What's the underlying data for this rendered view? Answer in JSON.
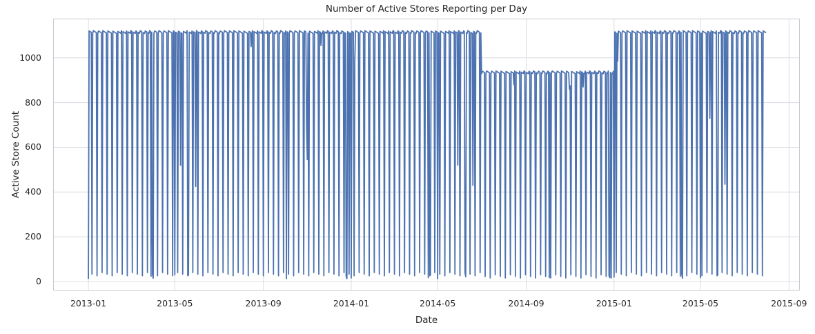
{
  "chart_data": {
    "type": "line",
    "title": "Number of Active Stores Reporting per Day",
    "xlabel": "Date",
    "ylabel": "Active Store Count",
    "line_color": "#4C72B0",
    "grid": "on",
    "grid_color": "#dcdce4",
    "spine_color": "#c9c9d3",
    "text_color": "#262626",
    "plot_bg": "#ffffff",
    "figure_bg": "#ffffff",
    "x_axis": {
      "min": "2012-11-14",
      "max": "2015-09-15",
      "ticks": [
        {
          "label": "2013-01",
          "date": "2013-01-01"
        },
        {
          "label": "2013-05",
          "date": "2013-05-01"
        },
        {
          "label": "2013-09",
          "date": "2013-09-01"
        },
        {
          "label": "2014-01",
          "date": "2014-01-01"
        },
        {
          "label": "2014-05",
          "date": "2014-05-01"
        },
        {
          "label": "2014-09",
          "date": "2014-09-01"
        },
        {
          "label": "2015-01",
          "date": "2015-01-01"
        },
        {
          "label": "2015-05",
          "date": "2015-05-01"
        },
        {
          "label": "2015-09",
          "date": "2015-09-01"
        }
      ]
    },
    "y_axis": {
      "min": -37,
      "max": 1172,
      "ticks": [
        0,
        200,
        400,
        600,
        800,
        1000
      ]
    },
    "series": {
      "name": "active-store-count",
      "frequency": "daily",
      "start": "2013-01-01",
      "end": "2015-07-31",
      "open_day_value": 1115,
      "sunday_value": 30,
      "closed_day_value": 22,
      "top_jitter": 6,
      "low_jitter": 10,
      "refurbishment_period": {
        "start": "2014-07-01",
        "end": "2014-12-31",
        "open_day_value": 935,
        "sunday_value": 20
      },
      "closed_holidays": [
        "2013-01-01",
        "2013-03-29",
        "2013-04-01",
        "2013-05-01",
        "2013-05-20",
        "2013-10-03",
        "2013-12-25",
        "2013-12-26",
        "2014-01-01",
        "2014-04-18",
        "2014-04-21",
        "2014-05-01",
        "2014-06-09",
        "2014-10-03",
        "2014-12-25",
        "2014-12-26",
        "2015-01-01",
        "2015-04-03",
        "2015-04-06",
        "2015-05-01",
        "2015-05-25"
      ],
      "partial_days": [
        {
          "date": "2013-05-09",
          "value": 520
        },
        {
          "date": "2013-05-30",
          "value": 425
        },
        {
          "date": "2013-08-15",
          "value": 1050
        },
        {
          "date": "2013-10-31",
          "value": 700
        },
        {
          "date": "2013-11-01",
          "value": 545
        },
        {
          "date": "2013-11-20",
          "value": 1055
        },
        {
          "date": "2014-01-06",
          "value": 985
        },
        {
          "date": "2014-05-29",
          "value": 520
        },
        {
          "date": "2014-06-19",
          "value": 430
        },
        {
          "date": "2014-08-15",
          "value": 880
        },
        {
          "date": "2014-10-31",
          "value": 860
        },
        {
          "date": "2014-11-01",
          "value": 875
        },
        {
          "date": "2014-11-19",
          "value": 870
        },
        {
          "date": "2015-01-06",
          "value": 985
        },
        {
          "date": "2015-05-14",
          "value": 730
        },
        {
          "date": "2015-06-04",
          "value": 435
        }
      ]
    }
  }
}
